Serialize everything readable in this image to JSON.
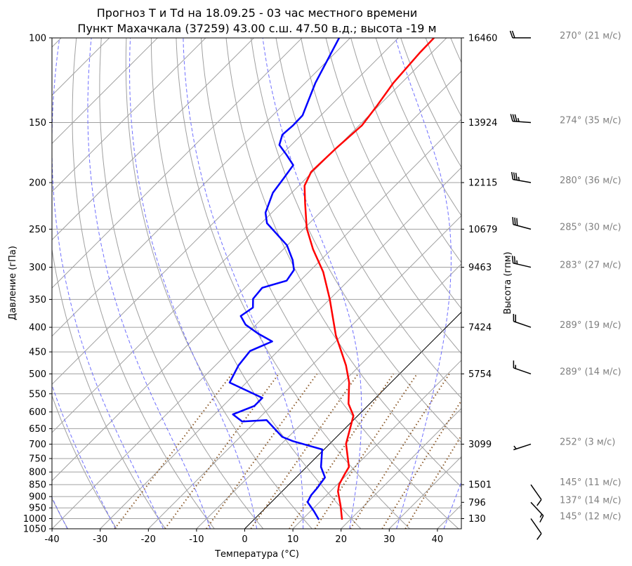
{
  "chart_data": {
    "type": "line",
    "subtype": "skew-t log-p",
    "title": [
      "Прогноз T и Td на 18.09.25 - 03 час местного времени",
      "Пункт Махачкала (37259) 43.00 с.ш. 47.50 в.д.; высота -19 м"
    ],
    "xlabel": "Температура (°C)",
    "ylabel": "Давление (гПа)",
    "y2label": "Высота (гпм)",
    "xlim": [
      -40,
      45
    ],
    "ylim": [
      1050,
      100
    ],
    "x_ticks": [
      "-40",
      "-30",
      "-20",
      "-10",
      "0",
      "10",
      "20",
      "30",
      "40"
    ],
    "x_tick_values": [
      -40,
      -30,
      -20,
      -10,
      0,
      10,
      20,
      30,
      40
    ],
    "y_ticks": [
      "100",
      "150",
      "200",
      "250",
      "300",
      "350",
      "400",
      "450",
      "500",
      "550",
      "600",
      "650",
      "700",
      "750",
      "800",
      "850",
      "900",
      "950",
      "1000",
      "1050"
    ],
    "y_tick_values": [
      100,
      150,
      200,
      250,
      300,
      350,
      400,
      450,
      500,
      550,
      600,
      650,
      700,
      750,
      800,
      850,
      900,
      950,
      1000,
      1050
    ],
    "heights": [
      {
        "p": 100,
        "label": "16460"
      },
      {
        "p": 150,
        "label": "13924"
      },
      {
        "p": 200,
        "label": "12115"
      },
      {
        "p": 250,
        "label": "10679"
      },
      {
        "p": 300,
        "label": "9463"
      },
      {
        "p": 400,
        "label": "7424"
      },
      {
        "p": 500,
        "label": "5754"
      },
      {
        "p": 700,
        "label": "3099"
      },
      {
        "p": 850,
        "label": "1501"
      },
      {
        "p": 925,
        "label": "796"
      },
      {
        "p": 1000,
        "label": "130"
      }
    ],
    "series": [
      {
        "name": "T",
        "color": "#ff0000",
        "points": [
          [
            1005,
            18.3
          ],
          [
            940,
            15.1
          ],
          [
            878,
            11.6
          ],
          [
            849,
            10.4
          ],
          [
            808,
            9.4
          ],
          [
            781,
            8.8
          ],
          [
            699,
            3.4
          ],
          [
            611,
            -0.9
          ],
          [
            577,
            -4.4
          ],
          [
            521,
            -8.7
          ],
          [
            480,
            -12.9
          ],
          [
            416,
            -21.2
          ],
          [
            349,
            -30.1
          ],
          [
            307,
            -37.0
          ],
          [
            275,
            -43.9
          ],
          [
            249,
            -49.5
          ],
          [
            221,
            -55.0
          ],
          [
            203,
            -58.8
          ],
          [
            190,
            -60.3
          ],
          [
            169,
            -60.0
          ],
          [
            152,
            -59.4
          ],
          [
            138,
            -60.4
          ],
          [
            124,
            -61.7
          ],
          [
            107,
            -62.5
          ],
          [
            100,
            -62.6
          ]
        ]
      },
      {
        "name": "Td",
        "color": "#0000ff",
        "points": [
          [
            1005,
            13.5
          ],
          [
            965,
            10.7
          ],
          [
            924,
            7.5
          ],
          [
            894,
            6.8
          ],
          [
            864,
            6.6
          ],
          [
            821,
            6.0
          ],
          [
            781,
            3.0
          ],
          [
            718,
            -0.4
          ],
          [
            690,
            -8.2
          ],
          [
            676,
            -11.3
          ],
          [
            624,
            -18.0
          ],
          [
            628,
            -22.8
          ],
          [
            607,
            -26.2
          ],
          [
            583,
            -23.5
          ],
          [
            561,
            -23.5
          ],
          [
            521,
            -33.5
          ],
          [
            480,
            -35.2
          ],
          [
            448,
            -35.8
          ],
          [
            428,
            -33.2
          ],
          [
            412,
            -37.8
          ],
          [
            395,
            -42.2
          ],
          [
            379,
            -45.0
          ],
          [
            364,
            -44.2
          ],
          [
            349,
            -46.0
          ],
          [
            331,
            -46.4
          ],
          [
            320,
            -42.8
          ],
          [
            304,
            -43.5
          ],
          [
            290,
            -45.8
          ],
          [
            270,
            -50.1
          ],
          [
            243,
            -58.8
          ],
          [
            231,
            -61.3
          ],
          [
            210,
            -63.9
          ],
          [
            197,
            -64.6
          ],
          [
            184,
            -65.4
          ],
          [
            175,
            -69.0
          ],
          [
            167,
            -72.5
          ],
          [
            159,
            -74.0
          ],
          [
            152,
            -73.7
          ],
          [
            145,
            -73.8
          ],
          [
            124,
            -77.9
          ],
          [
            100,
            -82.3
          ]
        ]
      }
    ],
    "isotherm_highlight_C": 0,
    "dry_adiabats_theta_C": [
      -40,
      -30,
      -20,
      -10,
      0,
      10,
      20,
      30,
      40,
      50,
      60,
      70,
      80,
      90,
      100,
      110,
      120,
      130,
      140,
      150
    ],
    "moist_adiabats_t1000_C": [
      -40,
      -30,
      -20,
      -10,
      0,
      10,
      20,
      30,
      40
    ],
    "mixing_ratio_lines_gkg": [
      0.4,
      1,
      2,
      4,
      7,
      10,
      16,
      24,
      32
    ],
    "winds": [
      {
        "p": 100,
        "dir": 270,
        "spd": 21,
        "label": "270° (21 м/с)"
      },
      {
        "p": 150,
        "dir": 274,
        "spd": 35,
        "label": "274° (35 м/с)"
      },
      {
        "p": 200,
        "dir": 280,
        "spd": 36,
        "label": "280° (36 м/с)"
      },
      {
        "p": 250,
        "dir": 285,
        "spd": 30,
        "label": "285° (30 м/с)"
      },
      {
        "p": 300,
        "dir": 283,
        "spd": 27,
        "label": "283° (27 м/с)"
      },
      {
        "p": 400,
        "dir": 289,
        "spd": 19,
        "label": "289° (19 м/с)"
      },
      {
        "p": 500,
        "dir": 289,
        "spd": 14,
        "label": "289° (14 м/с)"
      },
      {
        "p": 700,
        "dir": 252,
        "spd": 3,
        "label": "252° (3 м/с)"
      },
      {
        "p": 850,
        "dir": 145,
        "spd": 11,
        "label": "145° (11 м/с)"
      },
      {
        "p": 925,
        "dir": 137,
        "spd": 14,
        "label": "137° (14 м/с)"
      },
      {
        "p": 1000,
        "dir": 145,
        "spd": 12,
        "label": "145° (12 м/с)"
      }
    ],
    "colors": {
      "grid": "#a0a0a0",
      "moist": "#6f6fff",
      "mixing": "#8b5a2b"
    }
  }
}
